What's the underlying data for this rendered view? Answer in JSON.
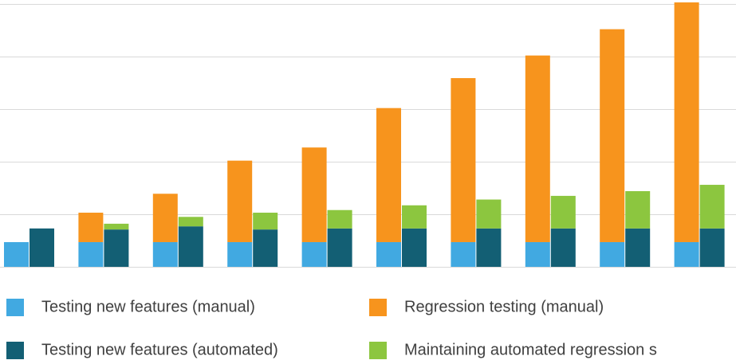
{
  "chart_data": {
    "type": "bar",
    "categories": [
      null,
      null,
      null,
      null,
      null,
      null,
      null,
      null,
      null,
      null
    ],
    "series": [
      {
        "name": "Testing new features (manual)",
        "color": "#41a9e1",
        "values": [
          4.7,
          4.7,
          4.7,
          4.7,
          4.7,
          4.7,
          4.7,
          4.7,
          4.7,
          4.7
        ]
      },
      {
        "name": "Regression testing (manual)",
        "color": "#f7941d",
        "values": [
          0,
          5.6,
          9.2,
          15.5,
          18,
          25.5,
          31.2,
          35.5,
          40.5,
          45.6
        ]
      },
      {
        "name": "Testing new features (automated)",
        "color": "#135f74",
        "values": [
          7.3,
          7.1,
          7.7,
          7.1,
          7.3,
          7.3,
          7.3,
          7.3,
          7.3,
          7.3
        ]
      },
      {
        "name": "Maintaining automated regression s",
        "color": "#8cc63f",
        "values": [
          0,
          1.1,
          1.8,
          3.2,
          3.5,
          4.4,
          5.5,
          6.2,
          7.1,
          8.3
        ]
      }
    ],
    "ylim": [
      0,
      50
    ],
    "yticks": [
      0,
      10,
      20,
      30,
      40,
      50
    ],
    "grid": true,
    "legend": "bottom"
  }
}
